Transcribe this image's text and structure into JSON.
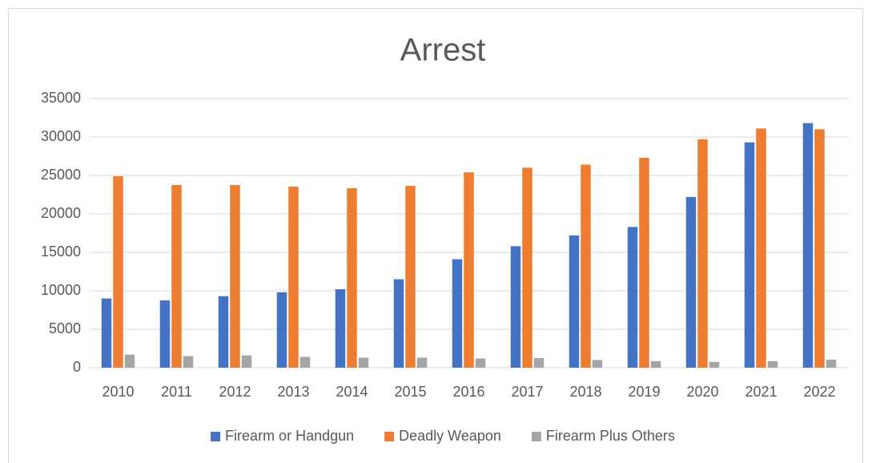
{
  "chart_data": {
    "type": "bar",
    "title": "Arrest",
    "categories": [
      "2010",
      "2011",
      "2012",
      "2013",
      "2014",
      "2015",
      "2016",
      "2017",
      "2018",
      "2019",
      "2020",
      "2021",
      "2022"
    ],
    "series": [
      {
        "name": "Firearm or Handgun",
        "color": "#4472c4",
        "values": [
          9000,
          8750,
          9300,
          9800,
          10200,
          11500,
          14100,
          15800,
          17200,
          18300,
          22200,
          29300,
          31800
        ]
      },
      {
        "name": "Deadly Weapon",
        "color": "#ed7d31",
        "values": [
          24900,
          23750,
          23750,
          23540,
          23330,
          23650,
          25400,
          26000,
          26400,
          27300,
          29700,
          31100,
          31000
        ]
      },
      {
        "name": "Firearm Plus Others",
        "color": "#a5a5a5",
        "values": [
          1700,
          1500,
          1600,
          1400,
          1300,
          1300,
          1200,
          1250,
          1000,
          850,
          750,
          850,
          1050
        ]
      }
    ],
    "ylim": [
      0,
      35000
    ],
    "yticks": [
      0,
      5000,
      10000,
      15000,
      20000,
      25000,
      30000,
      35000
    ],
    "grid": true,
    "legend": "bottom"
  }
}
